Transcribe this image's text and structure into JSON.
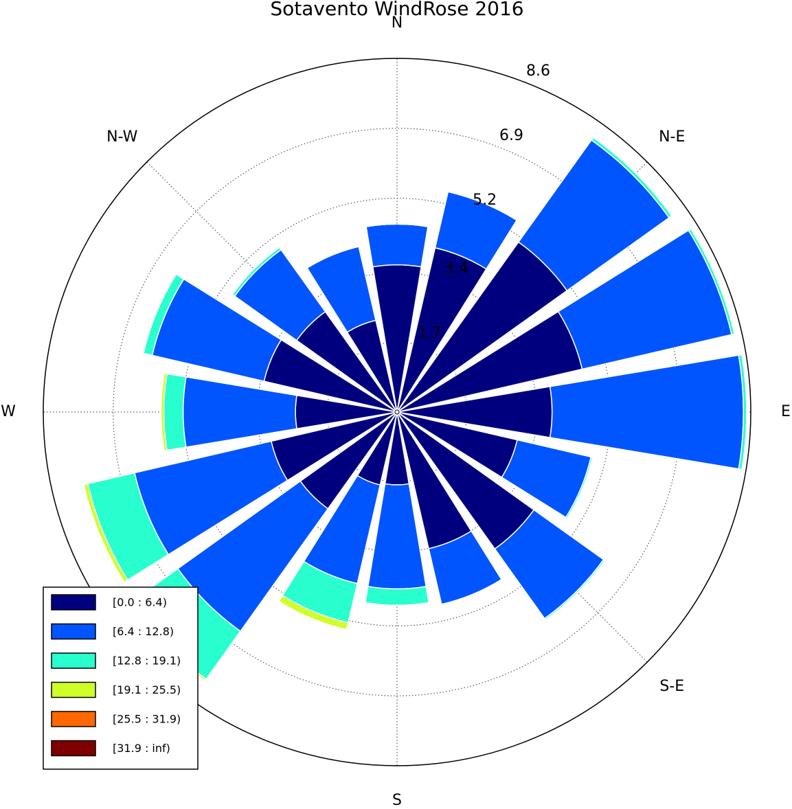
{
  "chart_data": {
    "type": "windrose",
    "title": "Sotavento WindRose 2016",
    "categories": [
      "N",
      null,
      "N-E",
      null,
      "E",
      null,
      "S-E",
      null,
      "S",
      null,
      null,
      null,
      "W",
      null,
      "N-W",
      null
    ],
    "ylim": [
      0,
      8.6
    ],
    "yticks": [
      1.7,
      3.4,
      5.2,
      6.9,
      8.6
    ],
    "grid": true,
    "legend": "lower left",
    "series": [
      {
        "name": "[0.0 : 6.4)",
        "color": "#00007f",
        "values": [
          3.58,
          4.1,
          5.08,
          4.62,
          3.77,
          3.0,
          4.09,
          3.41,
          1.77,
          1.82,
          2.89,
          3.14,
          2.47,
          3.32,
          3.0,
          2.29
        ]
      },
      {
        "name": "[6.4 : 12.8)",
        "color": "#0055ff",
        "values": [
          0.99,
          1.4,
          3.05,
          3.73,
          4.65,
          1.84,
          2.08,
          1.39,
          2.53,
          2.46,
          3.66,
          3.41,
          2.73,
          2.79,
          1.85,
          1.84
        ]
      },
      {
        "name": "[12.8 : 19.1)",
        "color": "#29ffce",
        "values": [
          0,
          0,
          0.08,
          0.07,
          0.08,
          0.04,
          0.04,
          0,
          0.4,
          0.98,
          1.43,
          1.17,
          0.47,
          0.22,
          0.07,
          0
        ]
      },
      {
        "name": "[19.1 : 25.5)",
        "color": "#ceff29",
        "values": [
          0,
          0,
          0,
          0.03,
          0,
          0,
          0,
          0,
          0,
          0.17,
          0.05,
          0.1,
          0.07,
          0,
          0,
          0
        ]
      },
      {
        "name": "[25.5 : 31.9)",
        "color": "#ff6800",
        "values": [
          0,
          0,
          0,
          0,
          0,
          0,
          0,
          0,
          0,
          0,
          0,
          0,
          0,
          0,
          0,
          0
        ]
      },
      {
        "name": "[31.9 : inf)",
        "color": "#7f0000",
        "values": [
          0,
          0,
          0,
          0,
          0,
          0,
          0,
          0,
          0,
          0,
          0,
          0,
          0,
          0,
          0,
          0
        ]
      }
    ]
  }
}
